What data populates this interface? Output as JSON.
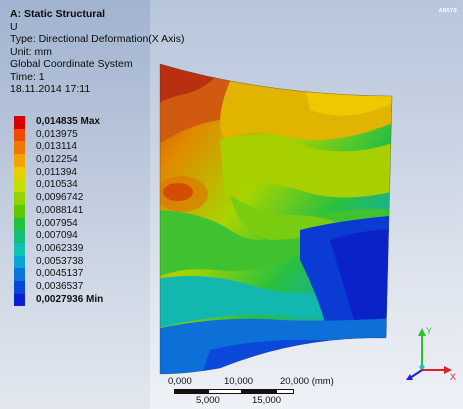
{
  "header": {
    "title": "A: Static Structural",
    "result": "U",
    "type": "Type: Directional Deformation(X Axis)",
    "unit": "Unit: mm",
    "coordinate_system": "Global Coordinate System",
    "time": "Time: 1",
    "date": "18.11.2014 17:11"
  },
  "logo": "ANSYS",
  "legend": {
    "items": [
      {
        "value": "0,014835 Max",
        "color": "#d90000",
        "bold": true
      },
      {
        "value": "0,013975",
        "color": "#ee4a00",
        "bold": false
      },
      {
        "value": "0,013114",
        "color": "#f07800",
        "bold": false
      },
      {
        "value": "0,012254",
        "color": "#f2a400",
        "bold": false
      },
      {
        "value": "0,011394",
        "color": "#e8d000",
        "bold": false
      },
      {
        "value": "0,010534",
        "color": "#c6de00",
        "bold": false
      },
      {
        "value": "0,0096742",
        "color": "#96d200",
        "bold": false
      },
      {
        "value": "0,0088141",
        "color": "#5cc800",
        "bold": false
      },
      {
        "value": "0,007954",
        "color": "#22c23a",
        "bold": false
      },
      {
        "value": "0,007094",
        "color": "#12c07a",
        "bold": false
      },
      {
        "value": "0,0062339",
        "color": "#10c2b4",
        "bold": false
      },
      {
        "value": "0,0053738",
        "color": "#0ca4d4",
        "bold": false
      },
      {
        "value": "0,0045137",
        "color": "#0a74dc",
        "bold": false
      },
      {
        "value": "0,0036537",
        "color": "#0846dc",
        "bold": false
      },
      {
        "value": "0,0027936 Min",
        "color": "#0a1ed2",
        "bold": true
      }
    ]
  },
  "scale": {
    "top_labels": [
      "0,000",
      "10,000",
      "20,000 (mm)"
    ],
    "bottom_labels": [
      "5,000",
      "15,000"
    ]
  },
  "triad": {
    "y_label": "Y",
    "x_label": "X"
  }
}
